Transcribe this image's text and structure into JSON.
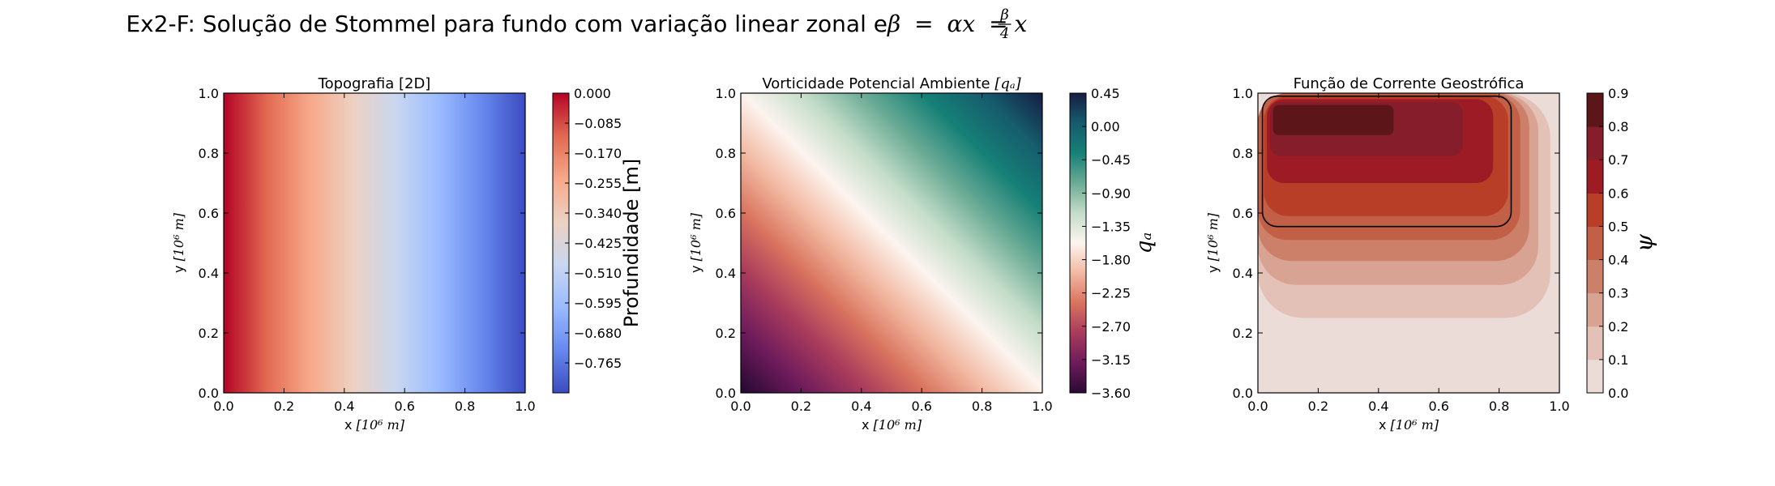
{
  "figure": {
    "suptitle_prefix": "Ex2-F: Solução de Stommel para fundo com variação linear zonal e ",
    "suptitle_math": {
      "lhs_symbol": "β",
      "eq1": "=",
      "mid_expr": "αx",
      "eq2": "=",
      "frac_num": "β",
      "frac_den": "4",
      "rhs_var": "x"
    }
  },
  "chart_data": [
    {
      "type": "heatmap",
      "title": "Topografia [2D]",
      "xlabel_text": "x ",
      "xlabel_unit": "[10⁶ m]",
      "ylabel_text": "y ",
      "ylabel_unit": "[10⁶ m]",
      "xlim": [
        0.0,
        1.0
      ],
      "ylim": [
        0.0,
        1.0
      ],
      "xticks": [
        "0.0",
        "0.2",
        "0.4",
        "0.6",
        "0.8",
        "1.0"
      ],
      "yticks": [
        "0.0",
        "0.2",
        "0.4",
        "0.6",
        "0.8",
        "1.0"
      ],
      "field": "linear in x: value = -0.85 * x",
      "colormap": "coolwarm (reversed)",
      "colormap_stops": [
        "#3b4cc0",
        "#6788ee",
        "#9abbff",
        "#c9d7f0",
        "#edd1c2",
        "#f7a889",
        "#e26952",
        "#b40426"
      ],
      "colorbar": {
        "label": "Profundidade [m]",
        "range": [
          -0.85,
          0.0
        ],
        "ticks": [
          "0.000",
          "−0.085",
          "−0.170",
          "−0.255",
          "−0.340",
          "−0.425",
          "−0.510",
          "−0.595",
          "−0.680",
          "−0.765"
        ],
        "tick_values": [
          0.0,
          -0.085,
          -0.17,
          -0.255,
          -0.34,
          -0.425,
          -0.51,
          -0.595,
          -0.68,
          -0.765
        ]
      }
    },
    {
      "type": "heatmap",
      "title": "Vorticidade Potencial Ambiente ",
      "title_math": "[qₐ]",
      "xlabel_text": "x ",
      "xlabel_unit": "[10⁶ m]",
      "ylabel_text": "y ",
      "ylabel_unit": "[10⁶ m]",
      "xlim": [
        0.0,
        1.0
      ],
      "ylim": [
        0.0,
        1.0
      ],
      "xticks": [
        "0.0",
        "0.2",
        "0.4",
        "0.6",
        "0.8",
        "1.0"
      ],
      "yticks": [
        "0.0",
        "0.2",
        "0.4",
        "0.6",
        "0.8",
        "1.0"
      ],
      "field": "oblique gradient: low at (0,0), high at (1,1)",
      "colormap": "curl-like (purple - red - white - green - teal - navy)",
      "colormap_stops": [
        "#2a0a33",
        "#6e1b5c",
        "#a83b5c",
        "#d9735e",
        "#f2b9a2",
        "#fcf4ef",
        "#c4ddc9",
        "#6aab95",
        "#168076",
        "#165c6d",
        "#151d44"
      ],
      "colorbar": {
        "label": "qₐ",
        "range": [
          -3.6,
          0.45
        ],
        "ticks": [
          "0.45",
          "0.00",
          "−0.45",
          "−0.90",
          "−1.35",
          "−1.80",
          "−2.25",
          "−2.70",
          "−3.15",
          "−3.60"
        ],
        "tick_values": [
          0.45,
          0.0,
          -0.45,
          -0.9,
          -1.35,
          -1.8,
          -2.25,
          -2.7,
          -3.15,
          -3.6
        ]
      }
    },
    {
      "type": "contour",
      "title": "Função de Corrente Geostrófica",
      "xlabel_text": "x ",
      "xlabel_unit": "[10⁶ m]",
      "ylabel_text": "y ",
      "ylabel_unit": "[10⁶ m]",
      "xlim": [
        0.0,
        1.0
      ],
      "ylim": [
        0.0,
        1.0
      ],
      "xticks": [
        "0.0",
        "0.2",
        "0.4",
        "0.6",
        "0.8",
        "1.0"
      ],
      "yticks": [
        "0.0",
        "0.2",
        "0.4",
        "0.6",
        "0.8",
        "1.0"
      ],
      "levels": [
        0.0,
        0.1,
        0.2,
        0.3,
        0.4,
        0.5,
        0.6,
        0.7,
        0.8,
        0.9
      ],
      "level_colors": [
        "#ebdcd8",
        "#e3c1b6",
        "#d8a393",
        "#cc806a",
        "#c26047",
        "#b83e27",
        "#9c1b24",
        "#851e2a",
        "#5c1519"
      ],
      "regions": [
        {
          "level_min": 0.1,
          "x0": 0.0,
          "x1": 0.97,
          "y0": 0.25,
          "y1": 1.0
        },
        {
          "level_min": 0.2,
          "x0": 0.0,
          "x1": 0.93,
          "y0": 0.36,
          "y1": 1.0
        },
        {
          "level_min": 0.3,
          "x0": 0.0,
          "x1": 0.9,
          "y0": 0.44,
          "y1": 1.0
        },
        {
          "level_min": 0.4,
          "x0": 0.0,
          "x1": 0.87,
          "y0": 0.51,
          "y1": 1.0
        },
        {
          "level_min": 0.5,
          "x0": 0.02,
          "x1": 0.83,
          "y0": 0.59,
          "y1": 0.99
        },
        {
          "level_min": 0.6,
          "x0": 0.03,
          "x1": 0.78,
          "y0": 0.7,
          "y1": 0.98
        },
        {
          "level_min": 0.7,
          "x0": 0.04,
          "x1": 0.68,
          "y0": 0.79,
          "y1": 0.97
        },
        {
          "level_min": 0.8,
          "x0": 0.05,
          "x1": 0.45,
          "y0": 0.86,
          "y1": 0.96
        }
      ],
      "highlight_contour": {
        "x0": 0.015,
        "x1": 0.84,
        "y0": 0.555,
        "y1": 0.99
      },
      "colorbar": {
        "label": "ψ",
        "range": [
          0.0,
          0.9
        ],
        "ticks": [
          "0.0",
          "0.1",
          "0.2",
          "0.3",
          "0.4",
          "0.5",
          "0.6",
          "0.7",
          "0.8",
          "0.9"
        ],
        "tick_values": [
          0.0,
          0.1,
          0.2,
          0.3,
          0.4,
          0.5,
          0.6,
          0.7,
          0.8,
          0.9
        ]
      }
    }
  ]
}
